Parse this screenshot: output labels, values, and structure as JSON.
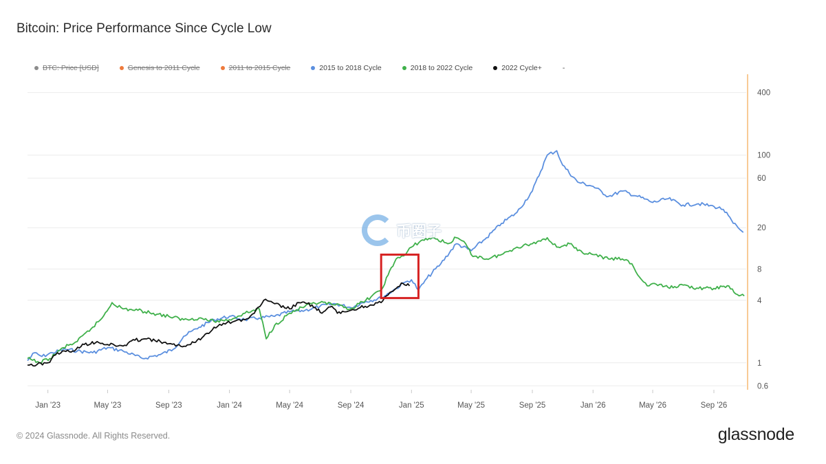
{
  "title": "Bitcoin: Price Performance Since Cycle Low",
  "legend": [
    {
      "label": "BTC: Price [USD]",
      "color": "#8c8c8c",
      "active": false
    },
    {
      "label": "Genesis to 2011 Cycle",
      "color": "#ee7a3c",
      "active": false
    },
    {
      "label": "2011 to 2015 Cycle",
      "color": "#ee7a3c",
      "active": false
    },
    {
      "label": "2015 to 2018 Cycle",
      "color": "#5b8fdf",
      "active": true
    },
    {
      "label": "2018 to 2022 Cycle",
      "color": "#3fb04a",
      "active": true
    },
    {
      "label": "2022 Cycle+",
      "color": "#111111",
      "active": true
    },
    {
      "label": "-",
      "color": "",
      "active": true
    }
  ],
  "footer": "© 2024 Glassnode. All Rights Reserved.",
  "brand": "glassnode",
  "watermark": "币圈子",
  "chart_data": {
    "type": "line",
    "title": "Bitcoin: Price Performance Since Cycle Low",
    "xlabel": "",
    "ylabel": "",
    "y_scale": "log",
    "ylim": [
      0.55,
      600
    ],
    "x_tick_labels": [
      "Jan '23",
      "May '23",
      "Sep '23",
      "Jan '24",
      "May '24",
      "Sep '24",
      "Jan '25",
      "May '25",
      "Sep '25",
      "Jan '26",
      "May '26",
      "Sep '26"
    ],
    "x_tick_dates": [
      "2023-01",
      "2023-05",
      "2023-09",
      "2024-01",
      "2024-05",
      "2024-09",
      "2025-01",
      "2025-05",
      "2025-09",
      "2026-01",
      "2026-05",
      "2026-09"
    ],
    "x_range": [
      "2022-11-21",
      "2026-11-05"
    ],
    "y_ticks": [
      0.6,
      1,
      4,
      8,
      20,
      60,
      100,
      400
    ],
    "highlight_box": {
      "x_from": "2024-11-01",
      "x_to": "2025-01-15",
      "y_from": 4.2,
      "y_to": 11,
      "color": "#d62222"
    },
    "series": [
      {
        "name": "2015 to 2018 Cycle",
        "color": "#5b8fdf",
        "points": [
          [
            "2022-11-21",
            1.05
          ],
          [
            "2022-12-05",
            1.25
          ],
          [
            "2022-12-20",
            1.15
          ],
          [
            "2023-01-10",
            1.25
          ],
          [
            "2023-02-05",
            1.35
          ],
          [
            "2023-03-01",
            1.3
          ],
          [
            "2023-04-01",
            1.25
          ],
          [
            "2023-05-01",
            1.4
          ],
          [
            "2023-06-01",
            1.3
          ],
          [
            "2023-07-10",
            1.1
          ],
          [
            "2023-08-15",
            1.2
          ],
          [
            "2023-09-10",
            1.35
          ],
          [
            "2023-10-01",
            1.8
          ],
          [
            "2023-11-01",
            2.2
          ],
          [
            "2023-12-01",
            2.6
          ],
          [
            "2024-01-01",
            2.8
          ],
          [
            "2024-02-01",
            2.6
          ],
          [
            "2024-03-01",
            2.7
          ],
          [
            "2024-04-01",
            2.8
          ],
          [
            "2024-05-01",
            3.1
          ],
          [
            "2024-06-01",
            3.2
          ],
          [
            "2024-07-01",
            3.5
          ],
          [
            "2024-08-01",
            3.7
          ],
          [
            "2024-09-01",
            3.4
          ],
          [
            "2024-10-01",
            3.9
          ],
          [
            "2024-11-01",
            4.2
          ],
          [
            "2024-12-01",
            5.2
          ],
          [
            "2024-12-20",
            6.0
          ],
          [
            "2025-01-01",
            6.3
          ],
          [
            "2025-01-15",
            5.0
          ],
          [
            "2025-02-01",
            6.5
          ],
          [
            "2025-03-01",
            9
          ],
          [
            "2025-04-01",
            14
          ],
          [
            "2025-05-01",
            12
          ],
          [
            "2025-06-01",
            16
          ],
          [
            "2025-07-01",
            22
          ],
          [
            "2025-08-01",
            28
          ],
          [
            "2025-09-01",
            45
          ],
          [
            "2025-10-01",
            100
          ],
          [
            "2025-10-20",
            110
          ],
          [
            "2025-11-01",
            80
          ],
          [
            "2025-12-01",
            55
          ],
          [
            "2026-01-01",
            50
          ],
          [
            "2026-02-01",
            40
          ],
          [
            "2026-03-01",
            45
          ],
          [
            "2026-04-01",
            40
          ],
          [
            "2026-05-01",
            35
          ],
          [
            "2026-06-01",
            38
          ],
          [
            "2026-07-01",
            33
          ],
          [
            "2026-08-01",
            34
          ],
          [
            "2026-09-01",
            32
          ],
          [
            "2026-09-20",
            30
          ],
          [
            "2026-10-10",
            22
          ],
          [
            "2026-10-30",
            18
          ]
        ]
      },
      {
        "name": "2018 to 2022 Cycle",
        "color": "#3fb04a",
        "points": [
          [
            "2022-11-21",
            1.1
          ],
          [
            "2022-12-15",
            1.0
          ],
          [
            "2023-01-05",
            1.1
          ],
          [
            "2023-02-01",
            1.4
          ],
          [
            "2023-03-01",
            1.6
          ],
          [
            "2023-04-01",
            2.2
          ],
          [
            "2023-04-20",
            2.7
          ],
          [
            "2023-05-10",
            3.8
          ],
          [
            "2023-06-01",
            3.3
          ],
          [
            "2023-07-01",
            3.2
          ],
          [
            "2023-08-01",
            3.0
          ],
          [
            "2023-09-01",
            2.8
          ],
          [
            "2023-10-01",
            2.6
          ],
          [
            "2023-11-01",
            2.7
          ],
          [
            "2023-12-01",
            2.5
          ],
          [
            "2024-01-01",
            2.6
          ],
          [
            "2024-02-01",
            3.0
          ],
          [
            "2024-03-01",
            3.3
          ],
          [
            "2024-03-15",
            1.7
          ],
          [
            "2024-04-01",
            2.3
          ],
          [
            "2024-05-01",
            3.0
          ],
          [
            "2024-06-01",
            3.5
          ],
          [
            "2024-07-01",
            3.8
          ],
          [
            "2024-08-01",
            3.6
          ],
          [
            "2024-09-01",
            3.3
          ],
          [
            "2024-10-01",
            4.0
          ],
          [
            "2024-11-01",
            5.0
          ],
          [
            "2024-11-15",
            7.0
          ],
          [
            "2024-12-01",
            10
          ],
          [
            "2024-12-20",
            11
          ],
          [
            "2025-01-01",
            13
          ],
          [
            "2025-01-20",
            15
          ],
          [
            "2025-02-15",
            16
          ],
          [
            "2025-03-15",
            14
          ],
          [
            "2025-04-01",
            16
          ],
          [
            "2025-04-20",
            14
          ],
          [
            "2025-05-01",
            11
          ],
          [
            "2025-06-01",
            10
          ],
          [
            "2025-07-01",
            11
          ],
          [
            "2025-08-01",
            13
          ],
          [
            "2025-09-01",
            14
          ],
          [
            "2025-10-01",
            16
          ],
          [
            "2025-10-20",
            13
          ],
          [
            "2025-11-15",
            14
          ],
          [
            "2025-12-01",
            12
          ],
          [
            "2026-01-01",
            11
          ],
          [
            "2026-02-01",
            10
          ],
          [
            "2026-03-01",
            10
          ],
          [
            "2026-03-20",
            9
          ],
          [
            "2026-04-01",
            7
          ],
          [
            "2026-04-20",
            5.5
          ],
          [
            "2026-05-01",
            5.8
          ],
          [
            "2026-06-01",
            5.3
          ],
          [
            "2026-07-01",
            5.6
          ],
          [
            "2026-08-01",
            5.2
          ],
          [
            "2026-09-01",
            5.2
          ],
          [
            "2026-10-01",
            5.5
          ],
          [
            "2026-10-15",
            4.6
          ],
          [
            "2026-11-01",
            4.4
          ]
        ]
      },
      {
        "name": "2022 Cycle+",
        "color": "#111111",
        "points": [
          [
            "2022-11-21",
            0.95
          ],
          [
            "2022-12-10",
            0.96
          ],
          [
            "2023-01-01",
            1.0
          ],
          [
            "2023-01-20",
            1.25
          ],
          [
            "2023-02-20",
            1.3
          ],
          [
            "2023-03-15",
            1.5
          ],
          [
            "2023-04-10",
            1.6
          ],
          [
            "2023-05-01",
            1.5
          ],
          [
            "2023-06-01",
            1.45
          ],
          [
            "2023-06-25",
            1.65
          ],
          [
            "2023-07-15",
            1.7
          ],
          [
            "2023-08-15",
            1.6
          ],
          [
            "2023-09-15",
            1.45
          ],
          [
            "2023-10-15",
            1.5
          ],
          [
            "2023-11-10",
            1.8
          ],
          [
            "2023-12-01",
            2.2
          ],
          [
            "2023-12-20",
            2.4
          ],
          [
            "2024-01-10",
            2.5
          ],
          [
            "2024-02-01",
            2.6
          ],
          [
            "2024-02-20",
            3.0
          ],
          [
            "2024-03-10",
            4.0
          ],
          [
            "2024-04-01",
            3.7
          ],
          [
            "2024-05-01",
            3.3
          ],
          [
            "2024-05-20",
            3.8
          ],
          [
            "2024-06-15",
            3.6
          ],
          [
            "2024-07-05",
            3.0
          ],
          [
            "2024-07-25",
            3.5
          ],
          [
            "2024-08-05",
            3.0
          ],
          [
            "2024-09-01",
            3.2
          ],
          [
            "2024-09-20",
            3.4
          ],
          [
            "2024-10-10",
            3.6
          ],
          [
            "2024-11-01",
            3.8
          ],
          [
            "2024-11-15",
            4.5
          ],
          [
            "2024-12-01",
            5.2
          ],
          [
            "2024-12-15",
            5.8
          ],
          [
            "2024-12-28",
            5.5
          ]
        ]
      }
    ]
  }
}
